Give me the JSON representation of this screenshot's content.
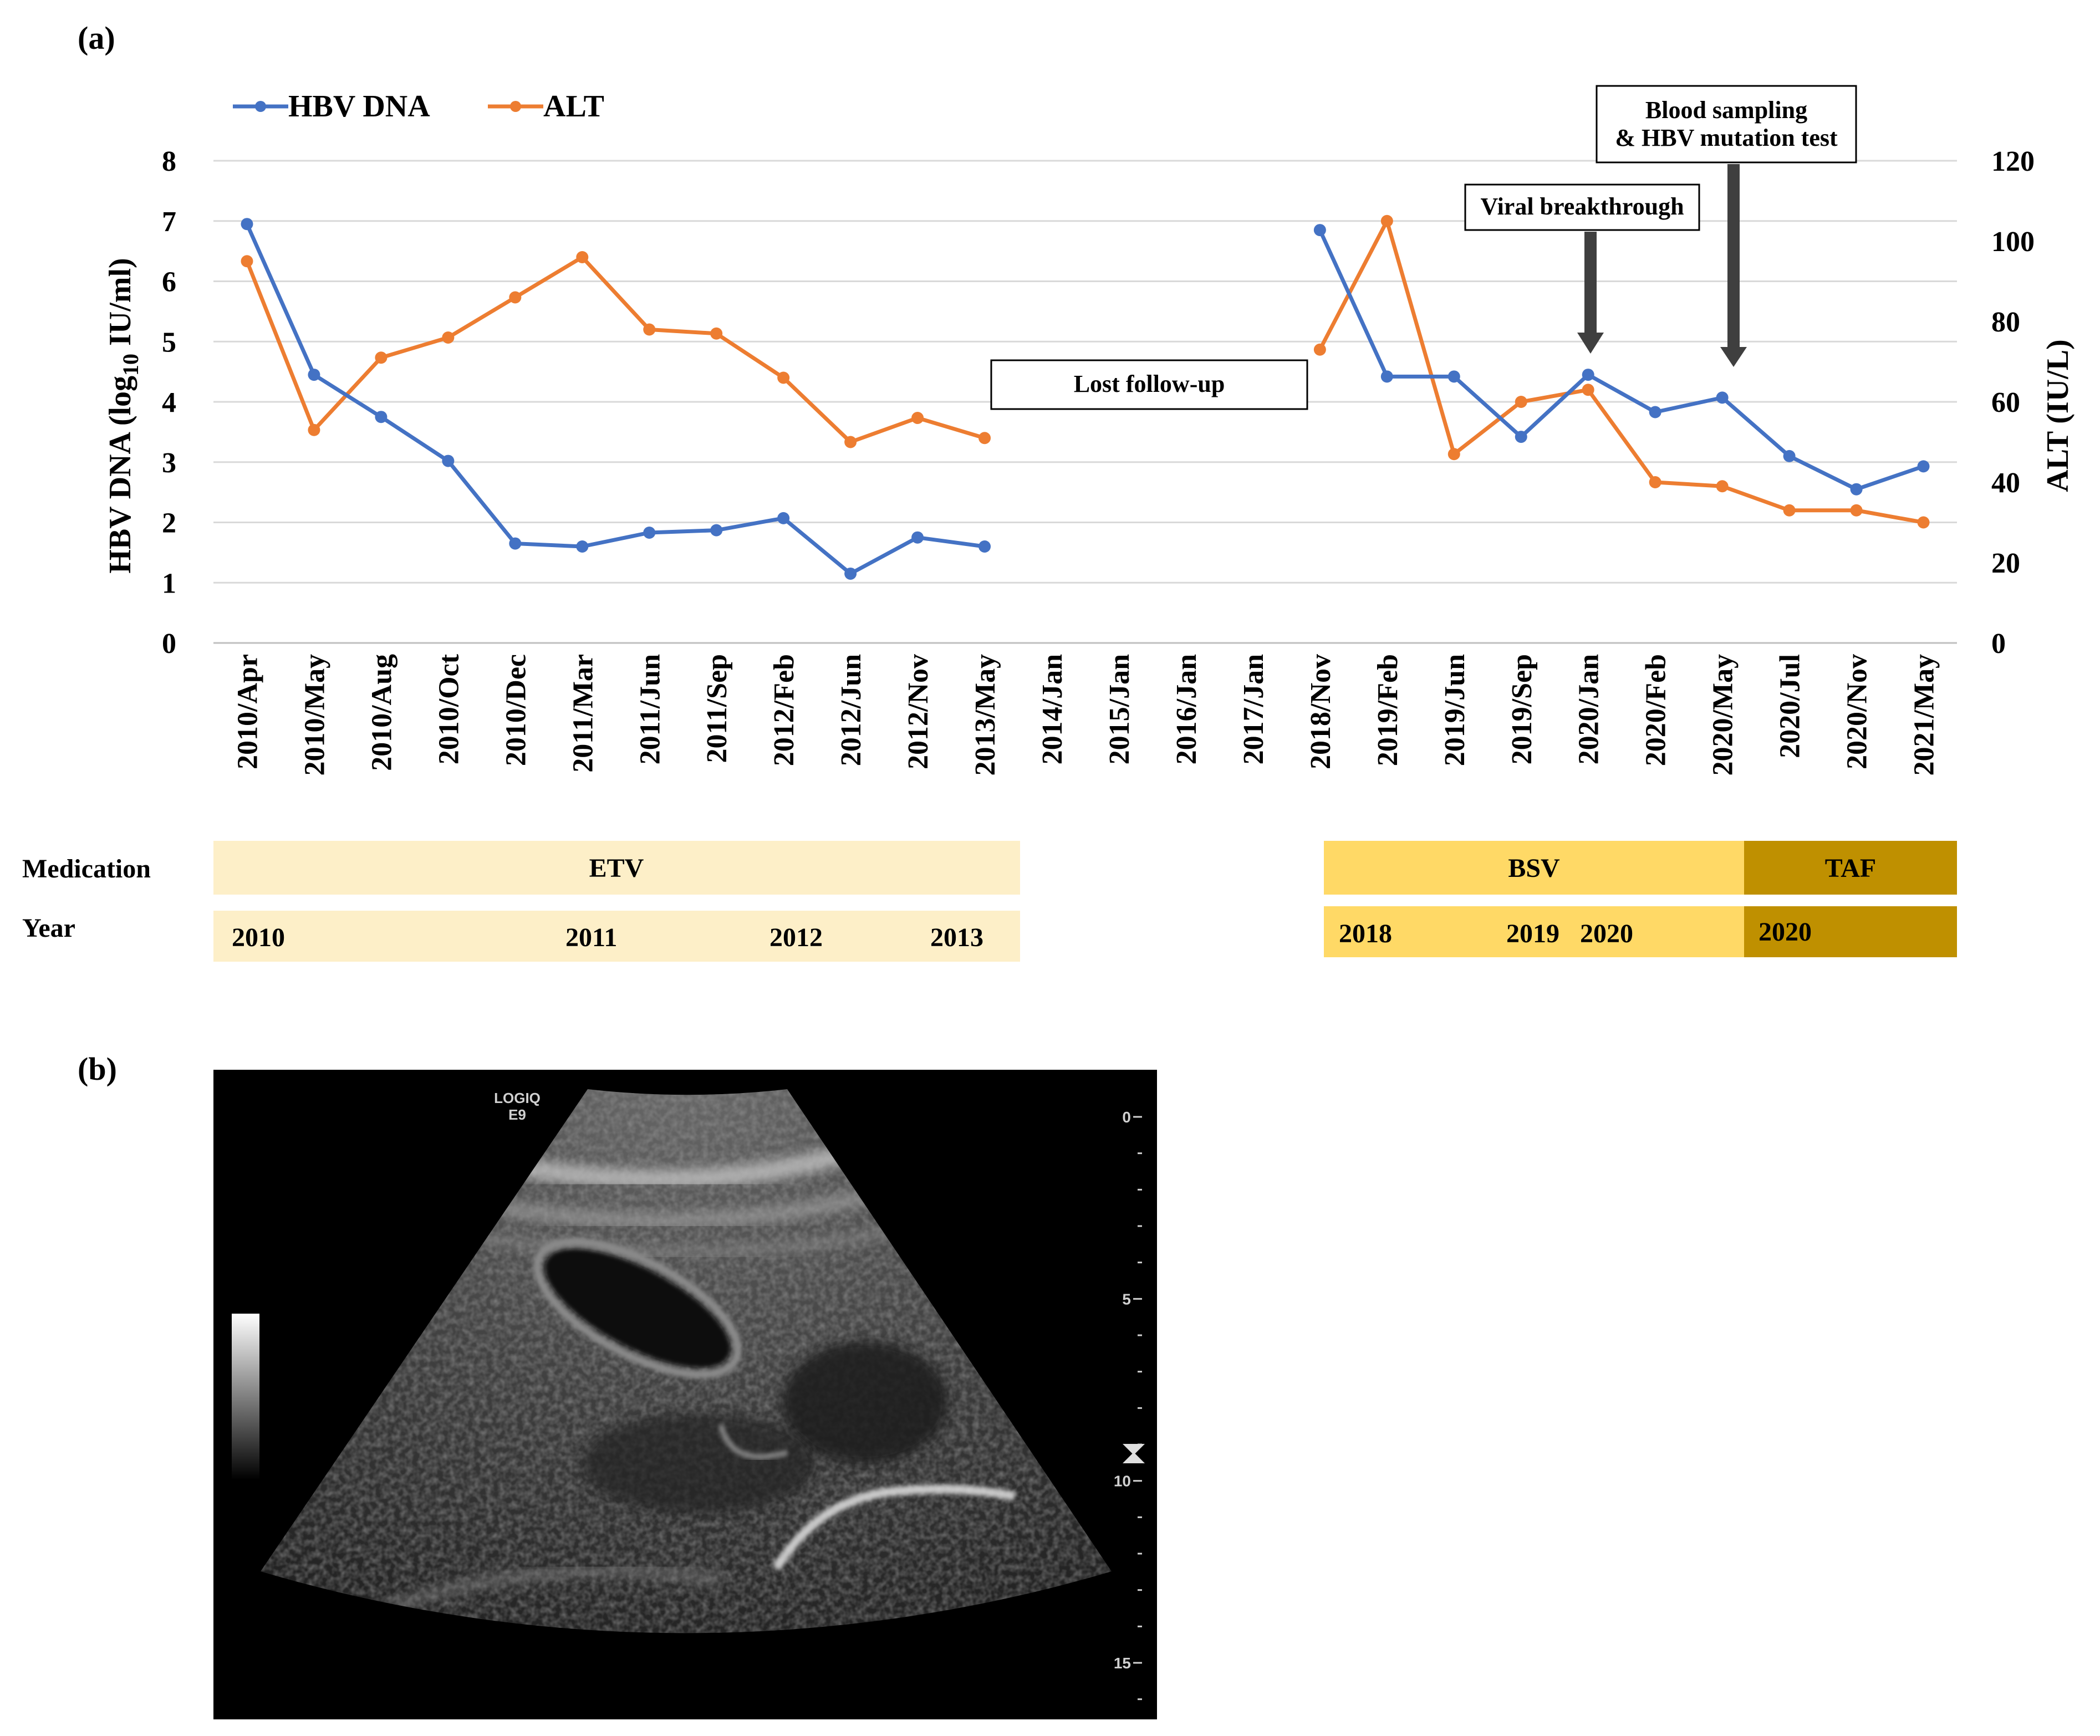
{
  "panels": {
    "a": "(a)",
    "b": "(b)"
  },
  "colors": {
    "hbv": "#4472c4",
    "alt": "#ed7d31",
    "etv": "#fdefc8",
    "bsv": "#ffd966",
    "taf": "#bf9000"
  },
  "chart_data": {
    "type": "line",
    "x": [
      "2010/Apr",
      "2010/May",
      "2010/Aug",
      "2010/Oct",
      "2010/Dec",
      "2011/Mar",
      "2011/Jun",
      "2011/Sep",
      "2012/Feb",
      "2012/Jun",
      "2012/Nov",
      "2013/May",
      "2014/Jan",
      "2015/Jan",
      "2016/Jan",
      "2017/Jan",
      "2018/Nov",
      "2019/Feb",
      "2019/Jun",
      "2019/Sep",
      "2020/Jan",
      "2020/Feb",
      "2020/May",
      "2020/Jul",
      "2020/Nov",
      "2021/May"
    ],
    "y_left_label": {
      "pre": "HBV DNA (log",
      "sub": "10",
      "post": " IU/ml)"
    },
    "y_left_ticks": [
      "0",
      "1",
      "2",
      "3",
      "4",
      "5",
      "6",
      "7",
      "8"
    ],
    "y_left_lim": [
      0,
      8
    ],
    "y_right_label": "ALT (IU/L)",
    "y_right_ticks": [
      "0",
      "20",
      "40",
      "60",
      "80",
      "100",
      "120"
    ],
    "y_right_lim": [
      0,
      120
    ],
    "grid": true,
    "legend_position": "top-left",
    "series": [
      {
        "name": "HBV DNA",
        "axis": "left",
        "values": [
          6.95,
          4.45,
          3.75,
          3.02,
          1.65,
          1.6,
          1.83,
          1.87,
          2.07,
          1.15,
          1.75,
          1.6,
          null,
          null,
          null,
          null,
          6.85,
          4.42,
          4.42,
          3.42,
          4.45,
          3.83,
          4.07,
          3.1,
          2.55,
          2.93
        ]
      },
      {
        "name": "ALT",
        "axis": "right",
        "values": [
          95,
          53,
          71,
          76,
          86,
          96,
          78,
          77,
          66,
          50,
          56,
          51,
          null,
          null,
          null,
          null,
          73,
          105,
          47,
          60,
          63,
          40,
          39,
          33,
          33,
          30
        ]
      }
    ],
    "annotations": [
      {
        "text_lines": [
          "Lost follow-up"
        ]
      },
      {
        "text_lines": [
          "Viral breakthrough"
        ],
        "arrow_to": "2020/Jan"
      },
      {
        "text_lines": [
          "Blood sampling",
          "& HBV mutation test"
        ],
        "arrow_to": "2020/May"
      }
    ]
  },
  "medication": {
    "label": "Medication",
    "bars": [
      {
        "name": "ETV",
        "color": "#fdefc8"
      },
      {
        "name": "BSV",
        "color": "#ffd966"
      },
      {
        "name": "TAF",
        "color": "#bf9000"
      }
    ]
  },
  "year": {
    "label": "Year",
    "etv_years": [
      "2010",
      "2011",
      "2012",
      "2013"
    ],
    "bsv_years": [
      "2018",
      "2019",
      "2020"
    ],
    "taf_years": [
      "2020"
    ]
  },
  "ultrasound": {
    "brand": "LOGIQ",
    "model": "E9",
    "depth_labels": [
      "0",
      "5",
      "10",
      "15"
    ]
  }
}
